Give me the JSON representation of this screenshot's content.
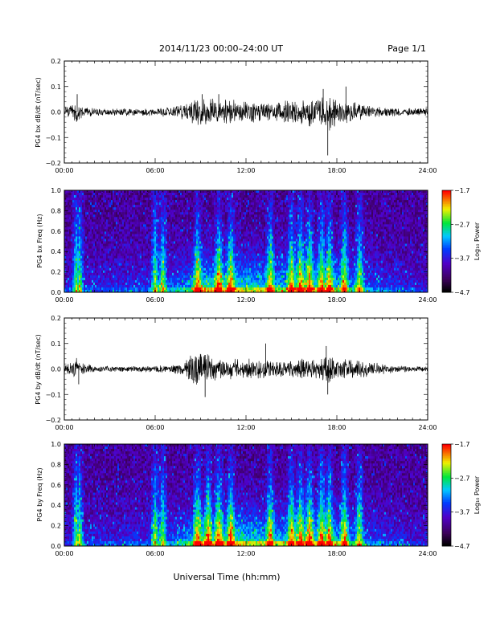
{
  "header": {
    "title": "2014/11/23  00:00–24:00 UT",
    "page": "Page 1/1"
  },
  "xlabel": "Universal Time (hh:mm)",
  "x_ticks": [
    "00:00",
    "06:00",
    "12:00",
    "18:00",
    "24:00"
  ],
  "chart_data": [
    {
      "type": "line",
      "ylabel": "PG4 bx dB/dt (nT/sec)",
      "xlim": [
        0,
        24
      ],
      "ylim": [
        -0.2,
        0.2
      ],
      "y_ticks": [
        "0.2",
        "0.1",
        "0.0",
        "−0.1",
        "−0.2"
      ],
      "envelope": {
        "hours": [
          0,
          0.6,
          0.8,
          1.0,
          2,
          4,
          6,
          7,
          8,
          8.5,
          9,
          10,
          11,
          12,
          13,
          14,
          15,
          16,
          17,
          17.5,
          18,
          19,
          20,
          21,
          22,
          23,
          24
        ],
        "amplitude": [
          0.02,
          0.03,
          0.06,
          0.03,
          0.015,
          0.015,
          0.015,
          0.02,
          0.03,
          0.05,
          0.06,
          0.05,
          0.05,
          0.04,
          0.04,
          0.04,
          0.045,
          0.05,
          0.06,
          0.07,
          0.06,
          0.04,
          0.03,
          0.02,
          0.015,
          0.015,
          0.015
        ]
      },
      "spikes": [
        {
          "hour": 0.85,
          "value": 0.07
        },
        {
          "hour": 9.1,
          "value": 0.07
        },
        {
          "hour": 10.2,
          "value": 0.07
        },
        {
          "hour": 17.1,
          "value": 0.09
        },
        {
          "hour": 17.4,
          "value": -0.17
        },
        {
          "hour": 18.6,
          "value": 0.1
        }
      ]
    },
    {
      "type": "heatmap",
      "ylabel": "PG4 bx Freq (Hz)",
      "xlim": [
        0,
        24
      ],
      "ylim": [
        0,
        1.0
      ],
      "y_ticks": [
        "1.0",
        "0.8",
        "0.6",
        "0.4",
        "0.2",
        "0.0"
      ],
      "colorbar": {
        "label": "Log₁₀ Power",
        "ticks": [
          "−1.7",
          "−2.7",
          "−3.7",
          "−4.7"
        ],
        "range": [
          -4.7,
          -1.7
        ]
      },
      "active_hours": [
        0.8,
        1.0,
        6.0,
        6.5,
        8.8,
        10.2,
        11.0,
        13.6,
        15.0,
        15.6,
        16.2,
        17.0,
        17.5,
        18.5,
        19.5
      ]
    },
    {
      "type": "line",
      "ylabel": "PG4 by dB/dt (nT/sec)",
      "xlim": [
        0,
        24
      ],
      "ylim": [
        -0.2,
        0.2
      ],
      "y_ticks": [
        "0.2",
        "0.1",
        "0.0",
        "−0.1",
        "−0.2"
      ],
      "envelope": {
        "hours": [
          0,
          0.6,
          0.8,
          1.0,
          2,
          4,
          6,
          7,
          8,
          8.5,
          9,
          10,
          11,
          12,
          13,
          14,
          15,
          16,
          17,
          17.5,
          18,
          19,
          20,
          21,
          22,
          23,
          24
        ],
        "amplitude": [
          0.02,
          0.03,
          0.04,
          0.03,
          0.012,
          0.012,
          0.012,
          0.015,
          0.03,
          0.06,
          0.07,
          0.05,
          0.04,
          0.04,
          0.04,
          0.035,
          0.04,
          0.04,
          0.05,
          0.06,
          0.04,
          0.035,
          0.03,
          0.02,
          0.012,
          0.012,
          0.012
        ]
      },
      "spikes": [
        {
          "hour": 0.95,
          "value": -0.06
        },
        {
          "hour": 9.3,
          "value": -0.11
        },
        {
          "hour": 13.3,
          "value": 0.1
        },
        {
          "hour": 17.3,
          "value": 0.09
        },
        {
          "hour": 17.4,
          "value": -0.1
        }
      ]
    },
    {
      "type": "heatmap",
      "ylabel": "PG4 by Freq (Hz)",
      "xlim": [
        0,
        24
      ],
      "ylim": [
        0,
        1.0
      ],
      "y_ticks": [
        "1.0",
        "0.8",
        "0.6",
        "0.4",
        "0.2",
        "0.0"
      ],
      "colorbar": {
        "label": "Log₁₀ Power",
        "ticks": [
          "−1.7",
          "−2.7",
          "−3.7",
          "−4.7"
        ],
        "range": [
          -4.7,
          -1.7
        ]
      },
      "active_hours": [
        0.8,
        1.0,
        6.0,
        6.5,
        8.8,
        9.5,
        10.2,
        11.0,
        13.6,
        15.0,
        15.6,
        16.2,
        17.0,
        17.5,
        18.5,
        19.5
      ]
    }
  ]
}
